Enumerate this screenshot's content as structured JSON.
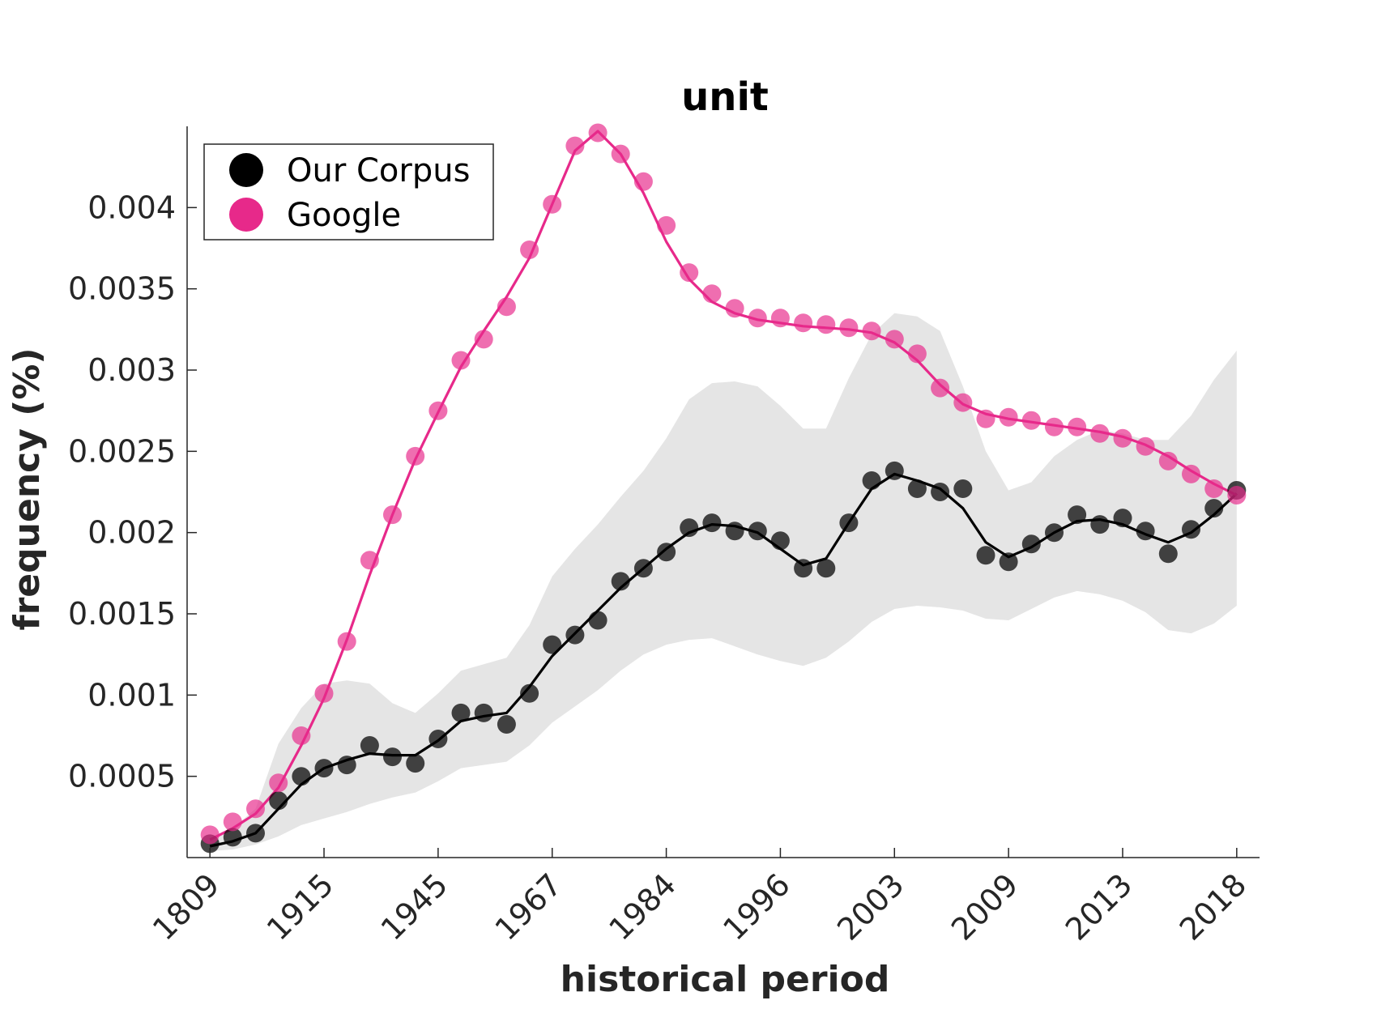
{
  "chart_data": {
    "type": "line",
    "title": "unit",
    "xlabel": "historical period",
    "ylabel": "frequency (%)",
    "xtick_labels": [
      "1809",
      "1915",
      "1945",
      "1967",
      "1984",
      "1996",
      "2003",
      "2009",
      "2013",
      "2018"
    ],
    "xtick_indices": [
      0,
      5,
      10,
      15,
      20,
      25,
      30,
      35,
      40,
      45
    ],
    "x_range": [
      -1,
      46
    ],
    "ylim": [
      0,
      0.0045
    ],
    "yticks": [
      0.0005,
      0.001,
      0.0015,
      0.002,
      0.0025,
      0.003,
      0.0035,
      0.004
    ],
    "ytick_labels": [
      "0.0005",
      "0.001",
      "0.0015",
      "0.002",
      "0.0025",
      "0.003",
      "0.0035",
      "0.004"
    ],
    "legend_position": "top-left",
    "grid": false,
    "series": [
      {
        "name": "Our Corpus",
        "color": "#000000",
        "points": [
          8.5e-05,
          0.000125,
          0.00015,
          0.00035,
          0.0005,
          0.00055,
          0.00057,
          0.00069,
          0.00062,
          0.00058,
          0.00073,
          0.00089,
          0.00089,
          0.00082,
          0.00101,
          0.00131,
          0.00137,
          0.00146,
          0.0017,
          0.00178,
          0.00188,
          0.00203,
          0.00206,
          0.00201,
          0.00201,
          0.00195,
          0.00178,
          0.00178,
          0.00206,
          0.00232,
          0.00238,
          0.00227,
          0.00225,
          0.00227,
          0.00186,
          0.00182,
          0.00193,
          0.002,
          0.00211,
          0.00205,
          0.00209,
          0.00201,
          0.00187,
          0.00202,
          0.00215,
          0.00226
        ],
        "smoothed": [
          7e-05,
          0.0001,
          0.00015,
          0.0003,
          0.00045,
          0.00055,
          0.0006,
          0.00064,
          0.00063,
          0.00063,
          0.00072,
          0.00084,
          0.00087,
          0.00089,
          0.00105,
          0.00124,
          0.00138,
          0.00152,
          0.00166,
          0.00178,
          0.0019,
          0.002,
          0.00205,
          0.00204,
          0.002,
          0.0019,
          0.0018,
          0.00184,
          0.00206,
          0.00227,
          0.00236,
          0.00232,
          0.00227,
          0.00215,
          0.00194,
          0.00185,
          0.00191,
          0.002,
          0.00207,
          0.00208,
          0.00205,
          0.00199,
          0.00194,
          0.002,
          0.00211,
          0.00224
        ],
        "band_upper": [
          0.0001,
          0.00018,
          0.0003,
          0.0007,
          0.00092,
          0.00107,
          0.00109,
          0.00107,
          0.00095,
          0.00089,
          0.00101,
          0.00115,
          0.00119,
          0.00123,
          0.00143,
          0.00173,
          0.0019,
          0.00205,
          0.00222,
          0.00238,
          0.00258,
          0.00282,
          0.00292,
          0.00293,
          0.0029,
          0.00278,
          0.00264,
          0.00264,
          0.00295,
          0.00322,
          0.00335,
          0.00333,
          0.00324,
          0.0029,
          0.0025,
          0.00226,
          0.00231,
          0.00247,
          0.00257,
          0.00263,
          0.00261,
          0.00257,
          0.00257,
          0.00272,
          0.00294,
          0.00312
        ],
        "band_lower": [
          4e-05,
          5e-05,
          8e-05,
          0.00013,
          0.0002,
          0.00024,
          0.00028,
          0.00033,
          0.00037,
          0.0004,
          0.00047,
          0.00055,
          0.00057,
          0.00059,
          0.00069,
          0.00083,
          0.00093,
          0.00103,
          0.00115,
          0.00125,
          0.00131,
          0.00134,
          0.00135,
          0.0013,
          0.00125,
          0.00121,
          0.00118,
          0.00123,
          0.00133,
          0.00145,
          0.00153,
          0.00155,
          0.00154,
          0.00152,
          0.00147,
          0.00146,
          0.00153,
          0.0016,
          0.00164,
          0.00162,
          0.00158,
          0.00151,
          0.0014,
          0.00138,
          0.00144,
          0.00155
        ]
      },
      {
        "name": "Google",
        "color": "#e7298a",
        "points": [
          0.00014,
          0.00022,
          0.0003,
          0.00046,
          0.00075,
          0.00101,
          0.00133,
          0.00183,
          0.00211,
          0.00247,
          0.00275,
          0.00306,
          0.00319,
          0.00339,
          0.00374,
          0.00402,
          0.00438,
          0.00446,
          0.00433,
          0.00416,
          0.00389,
          0.0036,
          0.00347,
          0.00338,
          0.00332,
          0.00332,
          0.00329,
          0.00328,
          0.00326,
          0.00324,
          0.00319,
          0.0031,
          0.00289,
          0.0028,
          0.0027,
          0.00271,
          0.00269,
          0.00265,
          0.00265,
          0.00261,
          0.00258,
          0.00253,
          0.00244,
          0.00236,
          0.00227,
          0.00223
        ],
        "smoothed": [
          0.00011,
          0.00018,
          0.00027,
          0.00043,
          0.00069,
          0.00098,
          0.00134,
          0.00174,
          0.00211,
          0.00245,
          0.00274,
          0.00302,
          0.00324,
          0.00345,
          0.00369,
          0.00402,
          0.00435,
          0.00447,
          0.00433,
          0.00409,
          0.00379,
          0.00356,
          0.00342,
          0.00335,
          0.00331,
          0.00329,
          0.00327,
          0.00326,
          0.00325,
          0.00323,
          0.00317,
          0.00306,
          0.00291,
          0.00279,
          0.00273,
          0.0027,
          0.00268,
          0.00266,
          0.00264,
          0.00262,
          0.00259,
          0.00254,
          0.00247,
          0.00238,
          0.0023,
          0.00223
        ]
      }
    ]
  }
}
